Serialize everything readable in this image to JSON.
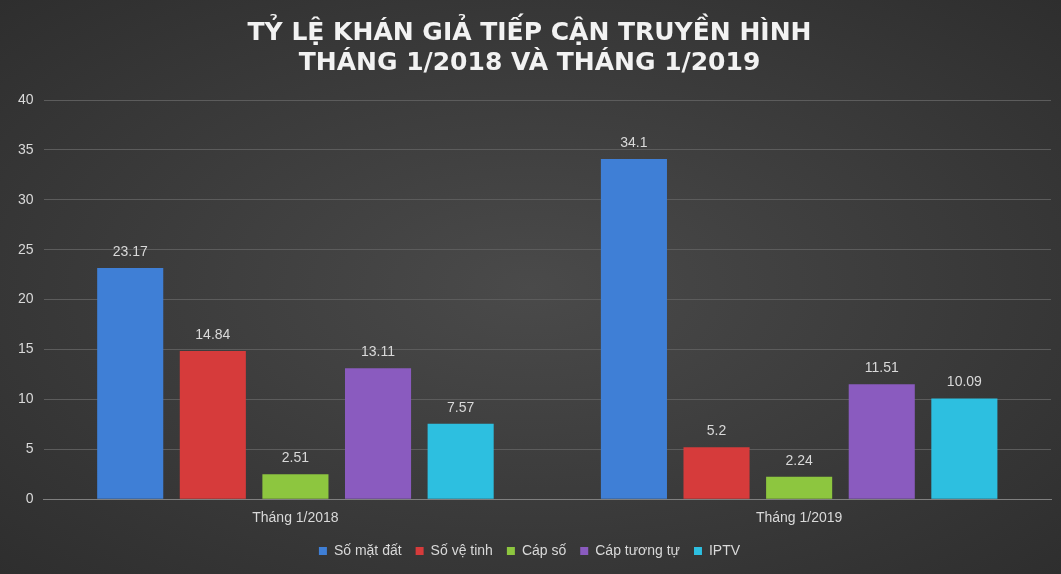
{
  "chart_data": {
    "type": "bar",
    "title": "TỶ LỆ KHÁN GIẢ TIẾP CẬN TRUYỀN HÌNH\nTHÁNG 1/2018 VÀ THÁNG 1/2019",
    "categories": [
      "Tháng 1/2018",
      "Tháng 1/2019"
    ],
    "series": [
      {
        "name": "Số mặt đất",
        "color": "#3f7fd6",
        "values": [
          23.17,
          34.1
        ]
      },
      {
        "name": "Số vệ tinh",
        "color": "#d63b3b",
        "values": [
          14.84,
          5.2
        ]
      },
      {
        "name": "Cáp số",
        "color": "#8dc63f",
        "values": [
          2.51,
          2.24
        ]
      },
      {
        "name": "Cáp tương tự",
        "color": "#8a5bbf",
        "values": [
          13.11,
          11.51
        ]
      },
      {
        "name": "IPTV",
        "color": "#2dbfe0",
        "values": [
          7.57,
          10.09
        ]
      }
    ],
    "ylim": [
      0,
      40
    ],
    "yticks": [
      0,
      5,
      10,
      15,
      20,
      25,
      30,
      35,
      40
    ],
    "grid": "y",
    "legend": "bottom",
    "data_labels": true
  }
}
